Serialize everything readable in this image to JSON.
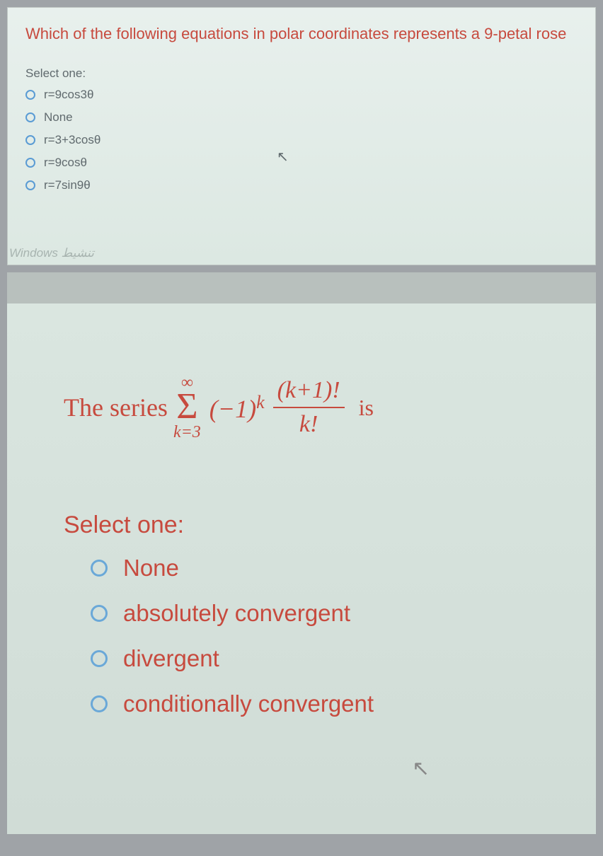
{
  "q1": {
    "question": "Which of the following equations in polar coordinates represents a 9-petal rose",
    "select_label": "Select one:",
    "options": [
      "r=9cos3θ",
      "None",
      "r=3+3cosθ",
      "r=9cosθ",
      "r=7sin9θ"
    ],
    "watermark": "Windows تنشيط",
    "colors": {
      "question_text": "#c74a3e",
      "option_text": "#606a6e",
      "radio_border": "#5a9bd4",
      "background": "#e8f0ed"
    }
  },
  "q2": {
    "series_label": "The series",
    "sigma_top": "∞",
    "sigma_bottom": "k=3",
    "term_base": "(−1)",
    "term_exp": "k",
    "frac_top": "(k+1)!",
    "frac_bot": "k!",
    "is_label": "is",
    "select_label": "Select one:",
    "options": [
      "None",
      "absolutely convergent",
      "divergent",
      "conditionally convergent"
    ],
    "colors": {
      "text": "#c74a3e",
      "radio_border": "#6aa8d8",
      "background": "#dae6e0"
    }
  }
}
